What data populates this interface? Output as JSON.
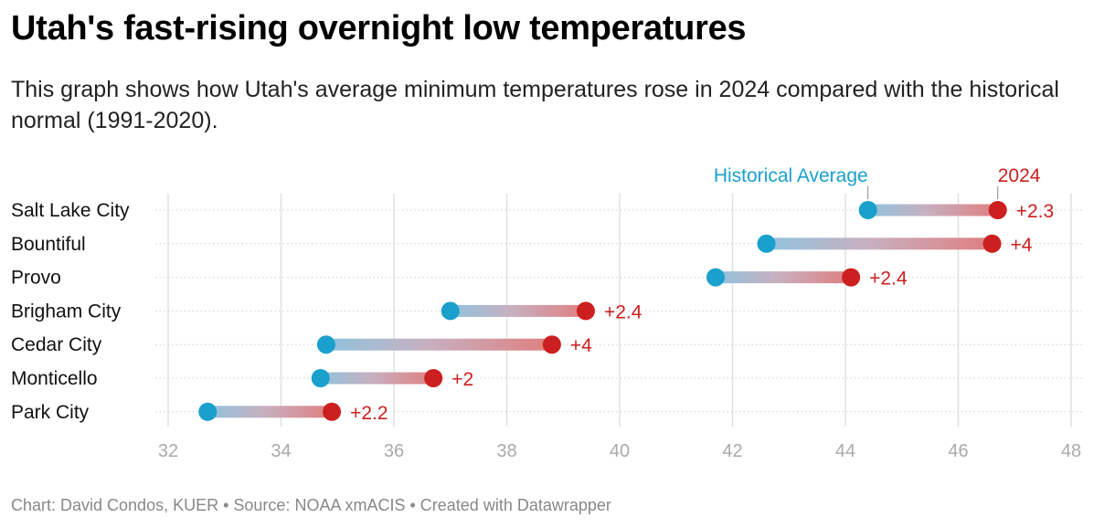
{
  "header": {
    "title": "Utah's fast-rising overnight low temperatures",
    "subtitle": "This graph shows how Utah's average minimum temperatures rose in 2024 compared with the historical normal (1991-2020)."
  },
  "footer": {
    "chart_credit": "Chart: David Condos, KUER",
    "source": "Source: NOAA xmACIS",
    "created_with": "Created with Datawrapper",
    "separator": "•"
  },
  "colors": {
    "historical": "#1aa0cc",
    "year_2024": "#cc1f1f",
    "grid": "#e0e0e0",
    "tick_label": "#aaaaaa"
  },
  "chart_data": {
    "type": "range-dot",
    "title": "",
    "xlabel": "",
    "ylabel": "",
    "xlim": [
      32,
      48
    ],
    "x_ticks": [
      32,
      34,
      36,
      38,
      40,
      42,
      44,
      46,
      48
    ],
    "grid": true,
    "legend_position": "above-top-row",
    "series": [
      {
        "name": "Historical Average",
        "key": "historical"
      },
      {
        "name": "2024",
        "key": "year_2024"
      }
    ],
    "rows": [
      {
        "city": "Salt Lake City",
        "historical": 44.4,
        "year_2024": 46.7,
        "change": "+2.3"
      },
      {
        "city": "Bountiful",
        "historical": 42.6,
        "year_2024": 46.6,
        "change": "+4"
      },
      {
        "city": "Provo",
        "historical": 41.7,
        "year_2024": 44.1,
        "change": "+2.4"
      },
      {
        "city": "Brigham City",
        "historical": 37.0,
        "year_2024": 39.4,
        "change": "+2.4"
      },
      {
        "city": "Cedar City",
        "historical": 34.8,
        "year_2024": 38.8,
        "change": "+4"
      },
      {
        "city": "Monticello",
        "historical": 34.7,
        "year_2024": 36.7,
        "change": "+2"
      },
      {
        "city": "Park City",
        "historical": 32.7,
        "year_2024": 34.9,
        "change": "+2.2"
      }
    ]
  }
}
